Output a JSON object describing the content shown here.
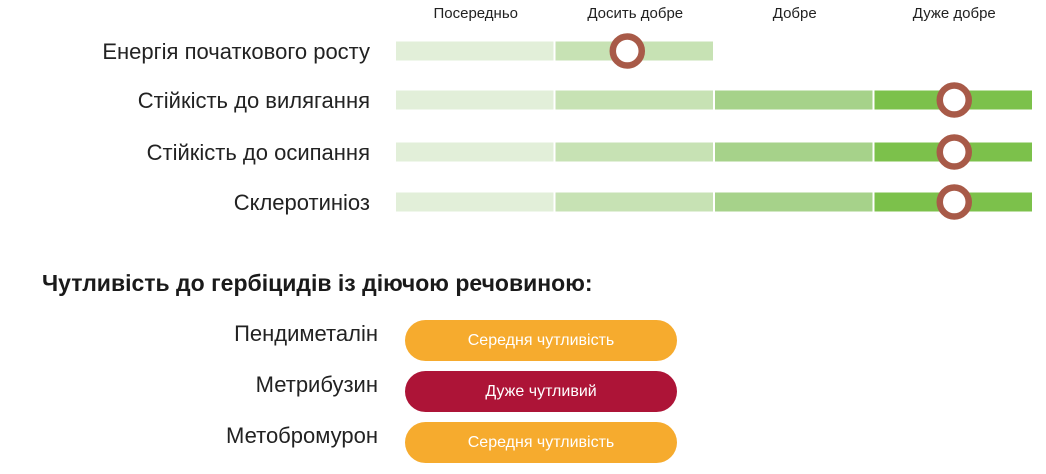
{
  "chart_data": {
    "type": "table",
    "levels": [
      "Посередньо",
      "Досить добре",
      "Добре",
      "Дуже добре"
    ],
    "level_colors": [
      "#e2efd9",
      "#c7e2b4",
      "#a6d28a",
      "#7cc14b"
    ],
    "marker_color": "#a85a48",
    "rows": [
      {
        "label": "Енергія початкового росту",
        "value": 1.45
      },
      {
        "label": "Стійкість до вилягання",
        "value": 3.5
      },
      {
        "label": "Стійкість до осипання",
        "value": 3.5
      },
      {
        "label": "Склеротиніоз",
        "value": 3.5
      }
    ]
  },
  "herbicides": {
    "title": "Чутливість до гербіцидів із діючою речовиною:",
    "items": [
      {
        "name": "Пендиметалін",
        "sensitivity": "Середня чутливість",
        "color": "#f6ab2e"
      },
      {
        "name": "Метрибузин",
        "sensitivity": "Дуже чутливий",
        "color": "#ad1437"
      },
      {
        "name": "Метобромурон",
        "sensitivity": "Середня чутливість",
        "color": "#f6ab2e"
      }
    ]
  }
}
